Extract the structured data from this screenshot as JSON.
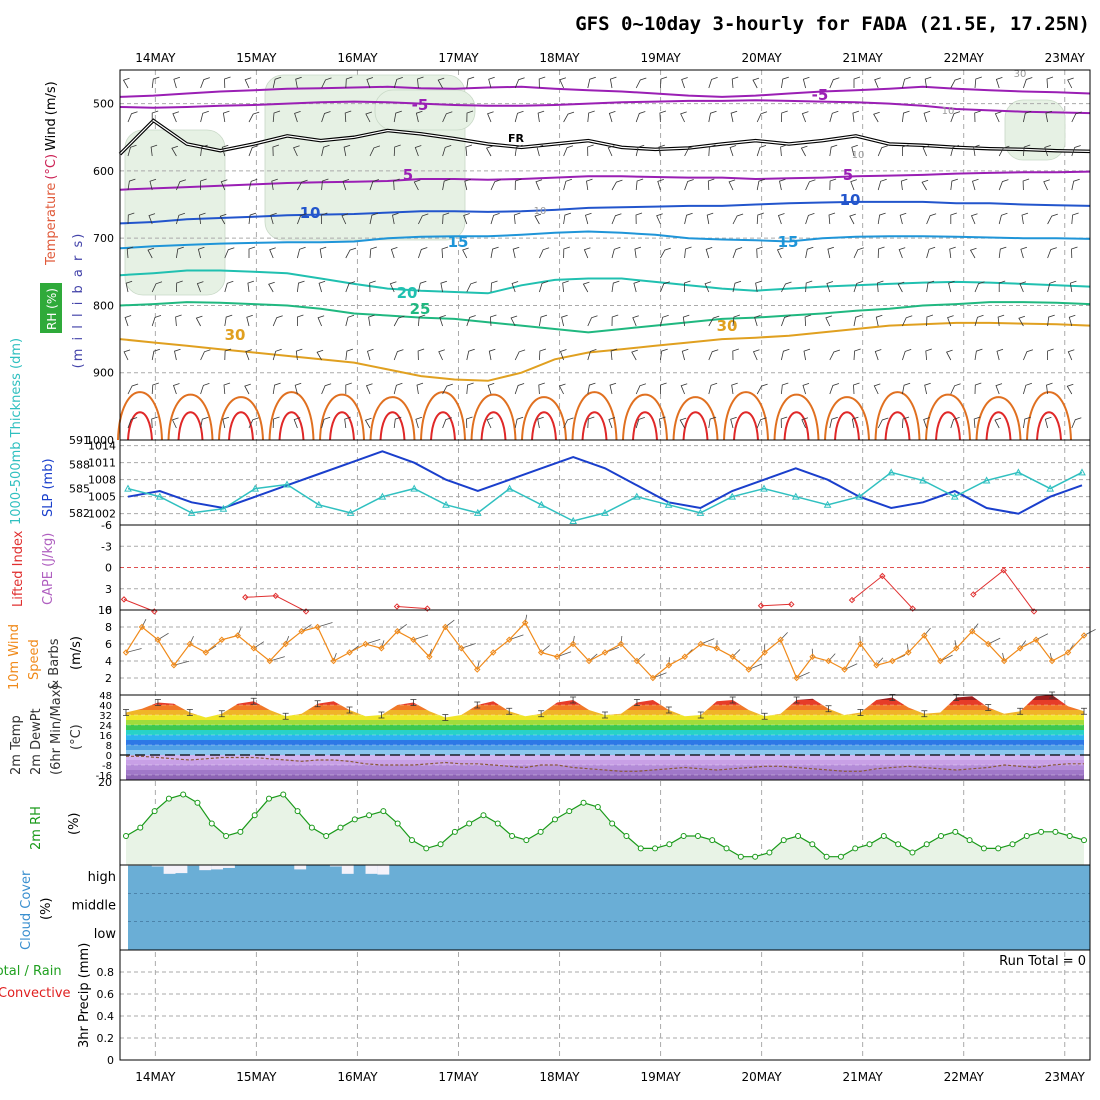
{
  "title": "GFS 0~10day 3-hourly for FADA (21.5E, 17.25N)",
  "colors": {
    "grid": "#aaaaaa",
    "frame": "#000000",
    "temp_5": "#9a1fb4",
    "temp_10": "#2255cc",
    "temp_15": "#1f95d8",
    "temp_20": "#20c0b0",
    "temp_25": "#20b880",
    "temp_30": "#e0a020",
    "temp_35": "#e07020",
    "temp_40": "#e02828",
    "rh_fill": "#e6f1e4",
    "slp": "#1a3fcc",
    "thickness": "#30c0c0",
    "li": "#e03030",
    "cape": "#b060c0",
    "wind_speed": "#f08a1a",
    "barb": "#555555",
    "rh2m_line": "#1a9a1a",
    "rh2m_fill": "#e8f3e6",
    "cloud_fill": "#6aaed6",
    "cloud_gap": "#f4f2fa",
    "precip_total": "#20a020",
    "precip_conv": "#e02020"
  },
  "chart_data": [
    {
      "panel": "upper-air",
      "type": "contour",
      "title": "Temperature (°C) / Wind (m/s) / RH (%)",
      "ylabel_parts": [
        "Temperature",
        "(°C)",
        "Wind",
        "(m/s)"
      ],
      "ylabel_pressure": "(m i l l i b a r s)",
      "rh_label": "RH (%)",
      "y_axis": {
        "inverted": true,
        "ylim": [
          1000,
          450
        ],
        "ticks": [
          500,
          600,
          700,
          800,
          900,
          1000
        ]
      },
      "freezing_label": "FR",
      "contour_labels": [
        "-5",
        "-5",
        "5",
        "5",
        "10",
        "10",
        "15",
        "15",
        "20",
        "25",
        "30",
        "30",
        "10",
        "10",
        "10",
        "30"
      ],
      "isotherms": [
        {
          "t": -5,
          "p": [
            490,
            488,
            485,
            482,
            480,
            478,
            477,
            476,
            475,
            477,
            478,
            476,
            475,
            478,
            480,
            482,
            485,
            488,
            490,
            488,
            485,
            482,
            480,
            478,
            475,
            478,
            480,
            482,
            483,
            485
          ]
        },
        {
          "t": -5,
          "p": [
            505,
            506,
            505,
            503,
            502,
            500,
            498,
            497,
            498,
            500,
            502,
            503,
            503,
            502,
            500,
            498,
            497,
            496,
            496,
            495,
            496,
            497,
            498,
            500,
            503,
            508,
            510,
            512,
            513,
            514
          ]
        },
        {
          "t": 5,
          "p": [
            628,
            626,
            624,
            622,
            620,
            618,
            617,
            616,
            615,
            612,
            612,
            613,
            612,
            610,
            608,
            608,
            609,
            610,
            610,
            612,
            611,
            610,
            608,
            607,
            606,
            604,
            603,
            602,
            602,
            601
          ]
        },
        {
          "t": 10,
          "p": [
            678,
            676,
            672,
            670,
            668,
            666,
            665,
            664,
            662,
            660,
            660,
            661,
            660,
            658,
            655,
            654,
            653,
            652,
            652,
            650,
            648,
            647,
            646,
            646,
            646,
            648,
            648,
            650,
            651,
            652
          ]
        },
        {
          "t": 15,
          "p": [
            715,
            712,
            710,
            708,
            707,
            706,
            706,
            705,
            700,
            698,
            697,
            697,
            695,
            692,
            690,
            692,
            695,
            700,
            702,
            703,
            705,
            700,
            698,
            697,
            697,
            698,
            699,
            700,
            700,
            701
          ]
        },
        {
          "t": 20,
          "p": [
            755,
            752,
            748,
            748,
            750,
            752,
            760,
            768,
            775,
            778,
            780,
            782,
            770,
            762,
            760,
            760,
            765,
            770,
            775,
            778,
            775,
            772,
            770,
            768,
            766,
            765,
            766,
            768,
            770,
            772
          ]
        },
        {
          "t": 25,
          "p": [
            800,
            798,
            795,
            796,
            798,
            800,
            805,
            812,
            815,
            818,
            820,
            825,
            830,
            835,
            840,
            835,
            830,
            825,
            820,
            818,
            815,
            812,
            808,
            805,
            800,
            798,
            795,
            795,
            796,
            798
          ]
        },
        {
          "t": 30,
          "p": [
            850,
            855,
            860,
            865,
            870,
            875,
            880,
            885,
            895,
            905,
            910,
            912,
            900,
            880,
            870,
            865,
            860,
            855,
            850,
            848,
            845,
            840,
            835,
            830,
            828,
            826,
            826,
            827,
            828,
            830
          ]
        }
      ],
      "freezing_level": [
        575,
        525,
        560,
        570,
        560,
        548,
        555,
        550,
        540,
        545,
        552,
        560,
        565,
        560,
        555,
        565,
        568,
        566,
        560,
        555,
        560,
        555,
        548,
        560,
        562,
        565,
        567,
        568,
        570,
        571
      ]
    },
    {
      "panel": "thickness-slp",
      "type": "line",
      "ylabel": "1000-500mb Thickness (dm)",
      "ylabel2": "SLP (mb)",
      "y_left": {
        "ylim": [
          580.5,
          591
        ],
        "ticks": [
          582,
          585,
          588,
          591
        ]
      },
      "y_right": {
        "ylim": [
          1000,
          1015
        ],
        "ticks": [
          1002,
          1005,
          1008,
          1011,
          1014
        ]
      },
      "series": [
        {
          "name": "SLP",
          "values": [
            1005,
            1006,
            1004,
            1003,
            1005,
            1007,
            1009,
            1011,
            1013,
            1011,
            1008,
            1006,
            1008,
            1010,
            1012,
            1010,
            1007,
            1004,
            1003,
            1006,
            1008,
            1010,
            1008,
            1005,
            1003,
            1004,
            1006,
            1003,
            1002,
            1005,
            1007
          ]
        },
        {
          "name": "Thickness",
          "values": [
            585,
            584,
            582,
            582.5,
            585,
            585.5,
            583,
            582,
            584,
            585,
            583,
            582,
            585,
            583,
            581,
            582,
            584,
            583,
            582,
            584,
            585,
            584,
            583,
            584,
            587,
            586,
            584,
            586,
            587,
            585,
            587
          ]
        }
      ]
    },
    {
      "panel": "li-cape",
      "type": "line",
      "ylabel": "Lifted Index",
      "ylabel2": "CAPE (J/kg)",
      "y_left": {
        "ylim": [
          6,
          -6
        ],
        "ticks": [
          "-6",
          "-3",
          "0",
          "3",
          "6"
        ]
      },
      "y_right": {
        "ticks": [
          "10"
        ]
      },
      "zero_line": 0,
      "series": [
        {
          "name": "LI",
          "values": [
            4.5,
            6.2,
            null,
            null,
            4.2,
            4.0,
            6.2,
            null,
            null,
            5.5,
            5.8,
            null,
            null,
            null,
            null,
            null,
            null,
            null,
            null,
            null,
            null,
            5.4,
            5.2,
            null,
            4.6,
            1.2,
            5.8,
            null,
            3.8,
            0.4,
            6.2
          ]
        }
      ]
    },
    {
      "panel": "10m-wind",
      "type": "line",
      "ylabel": "10m Wind Speed & Barbs (m/s)",
      "ylabel_parts": [
        "10m Wind",
        "Speed",
        "& Barbs"
      ],
      "yunit": "(m/s)",
      "ylim": [
        0,
        10
      ],
      "ticks": [
        2,
        4,
        6,
        8
      ],
      "series": [
        {
          "name": "Wind speed",
          "values": [
            5.0,
            8.0,
            6.5,
            3.5,
            6.0,
            5.0,
            6.5,
            7.0,
            5.5,
            4.0,
            6.0,
            7.5,
            8.0,
            4.0,
            5.0,
            6.0,
            5.5,
            7.5,
            6.5,
            4.5,
            8.0,
            5.5,
            3.0,
            5.0,
            6.5,
            8.5,
            5.0,
            4.5,
            6.0,
            4.0,
            5.0,
            6.0,
            4.0,
            2.0,
            3.5,
            4.5,
            6.0,
            5.5,
            4.5,
            3.0,
            5.0,
            6.5,
            2.0,
            4.5,
            4.0,
            3.0,
            6.0,
            3.5,
            4.0,
            5.0,
            7.0,
            4.0,
            5.5,
            7.5,
            6.0,
            4.0,
            5.5,
            6.5,
            4.0,
            5.0,
            7.0
          ]
        }
      ]
    },
    {
      "panel": "2m-temp",
      "type": "area",
      "ylabel": "2m Temp / 2m DewPt (6hr Min/Max) (°C)",
      "ylabel_parts": [
        "2m Temp",
        "2m DewPt",
        "(6hr Min/Max)",
        "(°C)"
      ],
      "ylim": [
        -20,
        48
      ],
      "ticks": [
        -16,
        -8,
        0,
        8,
        16,
        24,
        32,
        40,
        48
      ],
      "series": [
        {
          "name": "2m Temp",
          "values": [
            34,
            37,
            42,
            41,
            34,
            30,
            33,
            41,
            43,
            36,
            31,
            33,
            41,
            43,
            36,
            31,
            32,
            40,
            42,
            35,
            30,
            32,
            40,
            43,
            35,
            31,
            33,
            42,
            44,
            36,
            32,
            33,
            42,
            44,
            36,
            31,
            32,
            43,
            44,
            36,
            31,
            33,
            44,
            45,
            37,
            32,
            34,
            44,
            46,
            38,
            33,
            34,
            46,
            47,
            38,
            33,
            35,
            47,
            48,
            39,
            35
          ]
        },
        {
          "name": "2m DewPt",
          "values": [
            -1,
            -1,
            -2,
            -3,
            -4,
            -3,
            -2,
            -2,
            -2,
            -3,
            -4,
            -5,
            -4,
            -4,
            -5,
            -7,
            -8,
            -8,
            -8,
            -7,
            -6,
            -7,
            -7,
            -8,
            -9,
            -10,
            -8,
            -8,
            -10,
            -11,
            -12,
            -13,
            -13,
            -12,
            -11,
            -10,
            -11,
            -12,
            -11,
            -10,
            -9,
            -9,
            -10,
            -11,
            -12,
            -13,
            -13,
            -11,
            -10,
            -9,
            -10,
            -11,
            -12,
            -11,
            -10,
            -8,
            -9,
            -10,
            -8,
            -7,
            -7
          ]
        }
      ]
    },
    {
      "panel": "2m-rh",
      "type": "area",
      "ylabel": "2m RH (%)",
      "ylabel_parts": [
        "2m RH",
        "(%)"
      ],
      "ylim": [
        0,
        20
      ],
      "ticks": [
        20
      ],
      "series": [
        {
          "name": "2m RH",
          "values": [
            7,
            9,
            13,
            16,
            17,
            15,
            10,
            7,
            8,
            12,
            16,
            17,
            13,
            9,
            7,
            9,
            11,
            12,
            13,
            10,
            6,
            4,
            5,
            8,
            10,
            12,
            10,
            7,
            6,
            8,
            11,
            13,
            15,
            14,
            10,
            7,
            4,
            4,
            5,
            7,
            7,
            6,
            4,
            2,
            2,
            3,
            6,
            7,
            5,
            2,
            2,
            4,
            5,
            7,
            5,
            3,
            5,
            7,
            8,
            6,
            4,
            4,
            5,
            7,
            8,
            8,
            7,
            6
          ]
        }
      ]
    },
    {
      "panel": "cloud-cover",
      "type": "bar",
      "ylabel": "Cloud Cover (%)",
      "ylabel_parts": [
        "Cloud Cover",
        "(%)"
      ],
      "levels": [
        "high",
        "middle",
        "low"
      ],
      "series": [
        {
          "name": "high",
          "values": [
            98,
            98,
            96,
            76,
            78,
            98,
            86,
            88,
            92,
            100,
            100,
            100,
            100,
            100,
            88,
            100,
            100,
            96,
            76,
            100,
            76,
            74,
            100,
            100,
            100,
            100,
            100,
            100,
            100,
            100,
            100,
            100,
            100,
            100,
            100,
            100,
            100,
            100,
            100,
            100,
            100,
            100,
            100,
            100,
            100,
            100,
            100,
            100,
            100,
            100,
            100,
            100,
            100,
            100,
            100,
            100,
            100,
            100,
            100,
            100,
            100,
            100,
            100,
            100,
            100,
            100,
            100,
            100,
            100,
            100,
            100,
            100,
            100,
            100,
            100,
            100,
            100,
            100,
            100,
            100,
            100
          ]
        },
        {
          "name": "middle",
          "values": [
            100,
            100,
            100,
            100,
            100
          ]
        },
        {
          "name": "low",
          "values": [
            100,
            100,
            100,
            100,
            100
          ]
        }
      ]
    },
    {
      "panel": "precip",
      "type": "bar",
      "ylabel": "3hr Precip (mm)",
      "ylabel_parts": [
        "Total / Rain",
        "Convective",
        "3hr Precip (mm)"
      ],
      "ylim": [
        0,
        1.0
      ],
      "ticks": [
        "0",
        "0.2",
        "0.4",
        "0.6",
        "0.8"
      ],
      "run_total": "Run Total = 0",
      "series": [
        {
          "name": "Total / Rain",
          "values": []
        },
        {
          "name": "Convective",
          "values": []
        }
      ]
    }
  ],
  "x_axis": {
    "categories": [
      "14MAY",
      "15MAY",
      "16MAY",
      "17MAY",
      "18MAY",
      "19MAY",
      "20MAY",
      "21MAY",
      "22MAY",
      "23MAY"
    ],
    "days_span": [
      -0.35,
      9.25
    ]
  }
}
